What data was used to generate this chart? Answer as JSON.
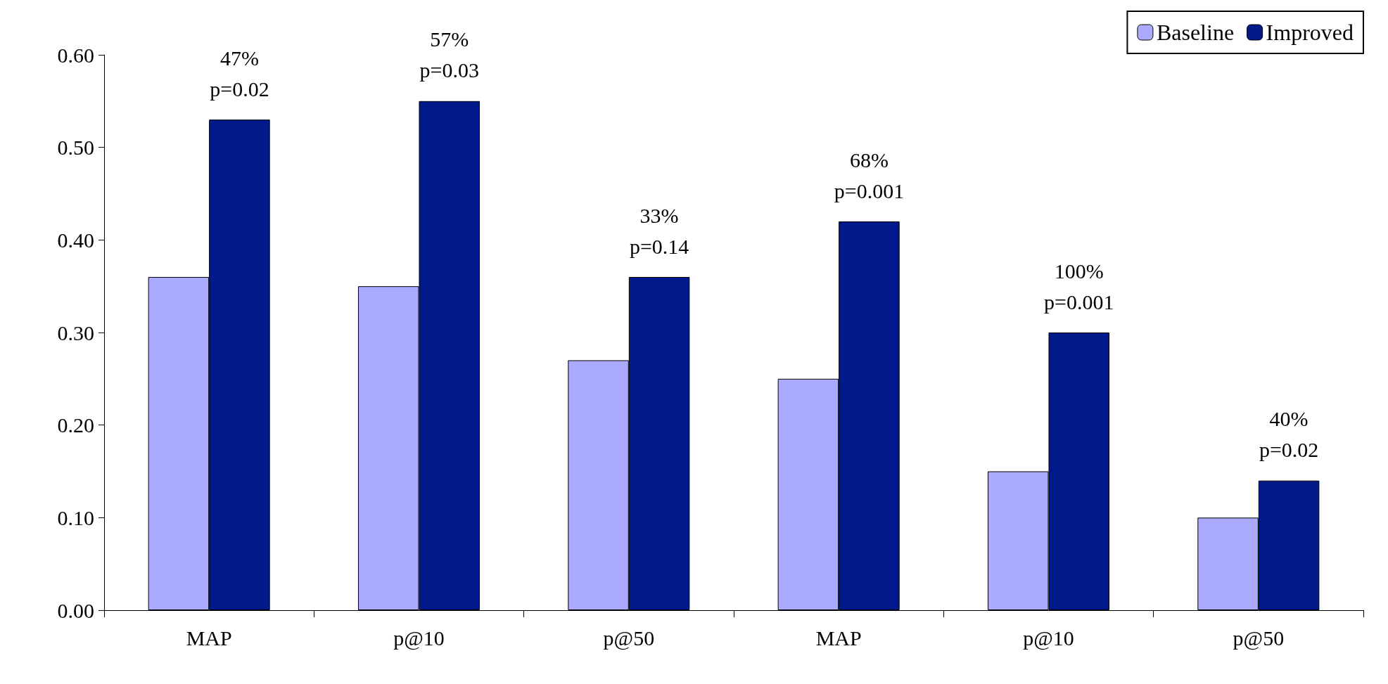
{
  "chart_data": {
    "type": "bar",
    "categories": [
      "MAP",
      "p@10",
      "p@50",
      "MAP",
      "p@10",
      "p@50"
    ],
    "series": [
      {
        "name": "Baseline",
        "color": "#aaaaff",
        "values": [
          0.36,
          0.35,
          0.27,
          0.25,
          0.15,
          0.1
        ]
      },
      {
        "name": "Improved",
        "color": "#001a8c",
        "values": [
          0.53,
          0.55,
          0.36,
          0.42,
          0.3,
          0.14
        ]
      }
    ],
    "ylim": [
      0,
      0.6
    ],
    "yticks": [
      {
        "value": 0,
        "label": "0.00"
      },
      {
        "value": 0.1,
        "label": "0.10"
      },
      {
        "value": 0.2,
        "label": "0.20"
      },
      {
        "value": 0.3,
        "label": "0.30"
      },
      {
        "value": 0.4,
        "label": "0.40"
      },
      {
        "value": 0.5,
        "label": "0.50"
      },
      {
        "value": 0.6,
        "label": "0.60"
      }
    ],
    "annotations": [
      "47%\np=0.02",
      "57%\np=0.03",
      "33%\np=0.14",
      "68%\np=0.001",
      "100%\np=0.001",
      "40%\np=0.02"
    ],
    "grid": false,
    "legend": "top right"
  }
}
